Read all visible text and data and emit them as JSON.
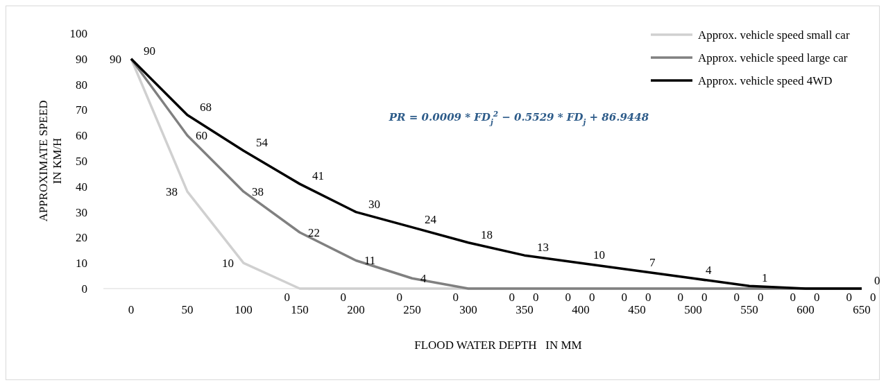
{
  "chart_data": {
    "type": "line",
    "xlabel": "FLOOD WATER DEPTH   IN MM",
    "ylabel": "APPROXIMATE SPEED IN KM/H",
    "categories": [
      "0",
      "50",
      "100",
      "150",
      "200",
      "250",
      "300",
      "350",
      "400",
      "450",
      "500",
      "550",
      "600",
      "650"
    ],
    "ylim": [
      0,
      100
    ],
    "yticks": [
      0,
      10,
      20,
      30,
      40,
      50,
      60,
      70,
      80,
      90,
      100
    ],
    "grid": false,
    "legend": "top right",
    "marker": "none",
    "line_style": "solid",
    "data_labels": true,
    "series": [
      {
        "name": "Approx. vehicle speed small car",
        "color": "#d0d0d0",
        "values": [
          90,
          38,
          10,
          0,
          0,
          0,
          0,
          0,
          0,
          0,
          0,
          0,
          0,
          0
        ],
        "value_labels": [
          "90",
          "38",
          "10",
          "0",
          "0",
          "0",
          "0",
          "0",
          "0",
          "0",
          "0",
          "0",
          "0",
          "0"
        ]
      },
      {
        "name": "Approx. vehicle speed large car",
        "color": "#808080",
        "values": [
          90,
          60,
          38,
          22,
          11,
          4,
          0,
          0,
          0,
          0,
          0,
          0,
          0,
          0
        ],
        "value_labels": [
          null,
          "60",
          "38",
          "22",
          "11",
          "4",
          null,
          "0",
          "0",
          "0",
          "0",
          "0",
          "0",
          "0"
        ]
      },
      {
        "name": "Approx. vehicle speed 4WD",
        "color": "#000000",
        "values": [
          90,
          68,
          54,
          41,
          30,
          24,
          18,
          13,
          10,
          7,
          4,
          1,
          0,
          0
        ],
        "value_labels": [
          "90",
          "68",
          "54",
          "41",
          "30",
          "24",
          "18",
          "13",
          "10",
          "7",
          "4",
          "1",
          null,
          "0"
        ]
      }
    ],
    "annotations": [
      "PR = 0.0009 * FD$_{j}$$^{2}$ − 0.5529 * FD$_{j}$ + 86.9448"
    ]
  }
}
